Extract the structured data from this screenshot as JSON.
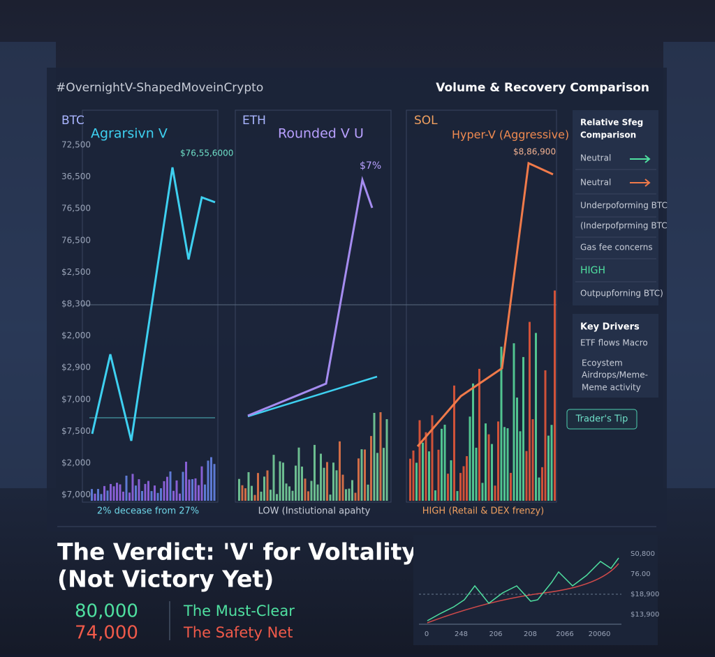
{
  "header": {
    "hashtag": "#OvernightV-ShapedMoveinCrypto",
    "title": "Volume & Recovery Comparison"
  },
  "panels": [
    {
      "ticker": "BTC",
      "pattern": "Agrarsivn V",
      "peak_label": "$76,55,6000",
      "footer": "2% decease from 27%"
    },
    {
      "ticker": "ETH",
      "pattern": "Rounded V  U",
      "peak_label": "$7%",
      "footer": "LOW (Instiutional apahty"
    },
    {
      "ticker": "SOL",
      "pattern": "Hyper-V (Aggressive)",
      "peak_label": "$8,86,900",
      "footer": "HIGH (Retail & DEX frenzy)"
    }
  ],
  "btc_yticks": [
    "72,500",
    "36,500",
    "76,500",
    "76,500",
    "$2,500",
    "$8,300",
    "$2,000",
    "$2,900",
    "$7,000",
    "$7,500",
    "$2,000",
    "$7,000"
  ],
  "comparison": {
    "title": [
      "Relative Sfeg",
      "Comparison"
    ],
    "rows": [
      "Neutral",
      "Neutral",
      "Underpoforming BTC",
      "(Inderpofprming BTC",
      "Gas fee concerns",
      "HIGH",
      "Outpupforning BTC)"
    ]
  },
  "drivers": {
    "title": "Key Drivers",
    "items": [
      "ETF flows  Macro",
      "Ecoystem",
      "Airdrops/Meme-",
      "Meme activity"
    ]
  },
  "tip_button": "Trader's Tip",
  "verdict": {
    "title": [
      "The Verdict: 'V' for Voltality",
      "(Not Victory Yet)"
    ],
    "levels": [
      {
        "value": "80,000",
        "label": "The Must-Clear"
      },
      {
        "value": "74,000",
        "label": "The Safety Net"
      }
    ]
  },
  "mini_chart": {
    "yticks": [
      "S0,800",
      "76.00",
      "$18,900",
      "$13,900"
    ],
    "xticks": [
      "0",
      "248",
      "206",
      "208",
      "2066",
      "20060"
    ]
  }
}
